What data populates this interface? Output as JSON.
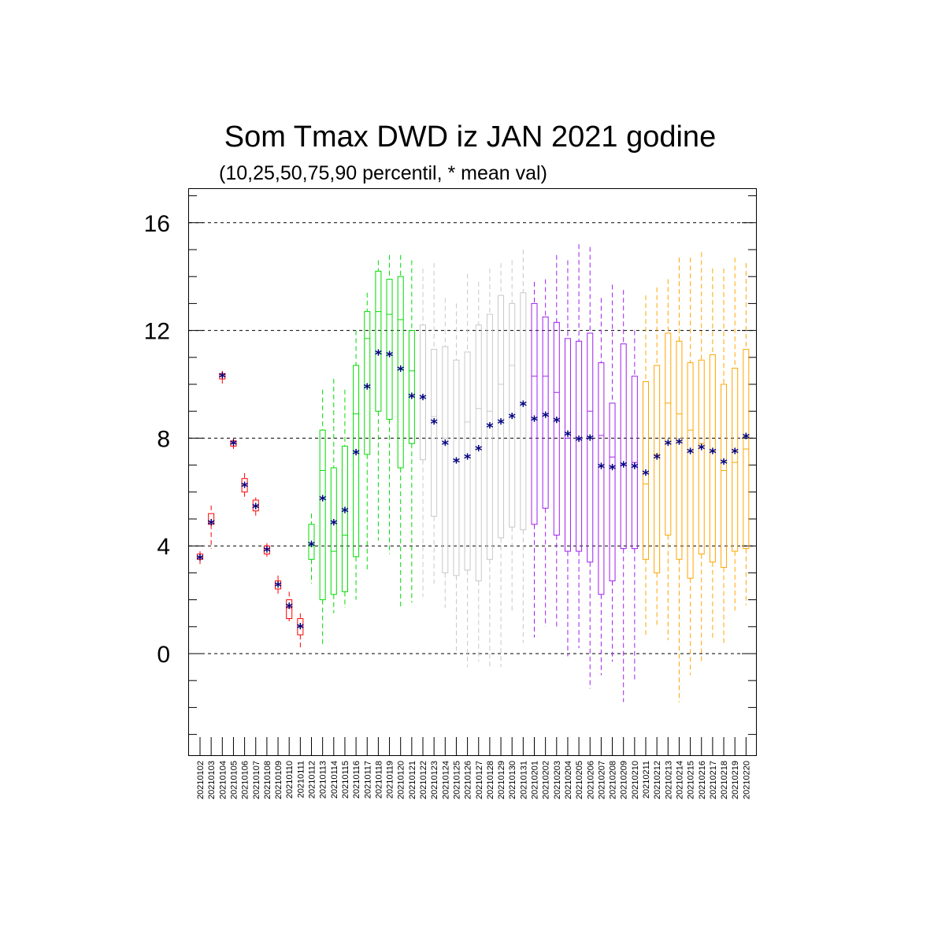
{
  "chart_data": {
    "type": "box",
    "title": "Som Tmax DWD iz JAN 2021 godine",
    "subtitle": "(10,25,50,75,90 percentil, * mean val)",
    "xlabel": "",
    "ylabel": "",
    "ylim": [
      -3.0,
      17.0
    ],
    "yticks": [
      0,
      4,
      8,
      12,
      16
    ],
    "grid": "horizontal dashed at major ticks",
    "colors": {
      "red": "#ff0000",
      "green": "#00dd00",
      "gray": "#c8c8c8",
      "purple": "#a020f0",
      "orange": "#ffa500",
      "mean": "#000080"
    },
    "categories": [
      "20210102",
      "20210103",
      "20210104",
      "20210105",
      "20210106",
      "20210107",
      "20210108",
      "20210109",
      "20210110",
      "20210111",
      "20210112",
      "20210113",
      "20210114",
      "20210115",
      "20210116",
      "20210117",
      "20210118",
      "20210119",
      "20210120",
      "20210121",
      "20210122",
      "20210123",
      "20210124",
      "20210125",
      "20210126",
      "20210127",
      "20210128",
      "20210129",
      "20210130",
      "20210131",
      "20210201",
      "20210202",
      "20210203",
      "20210204",
      "20210205",
      "20210206",
      "20210207",
      "20210208",
      "20210209",
      "20210210",
      "20210211",
      "20210212",
      "20210213",
      "20210214",
      "20210215",
      "20210216",
      "20210217",
      "20210218",
      "20210219",
      "20210220"
    ],
    "boxes": [
      {
        "color": "red",
        "p10": 3.3,
        "p25": 3.5,
        "p50": 3.6,
        "p75": 3.7,
        "p90": 3.8,
        "mean": 3.55
      },
      {
        "color": "red",
        "p10": 3.9,
        "p25": 4.8,
        "p50": 4.9,
        "p75": 5.2,
        "p90": 5.5,
        "mean": 4.85
      },
      {
        "color": "red",
        "p10": 10.0,
        "p25": 10.2,
        "p50": 10.3,
        "p75": 10.4,
        "p90": 10.5,
        "mean": 10.3
      },
      {
        "color": "red",
        "p10": 7.6,
        "p25": 7.7,
        "p50": 7.8,
        "p75": 7.9,
        "p90": 8.0,
        "mean": 7.8
      },
      {
        "color": "red",
        "p10": 5.7,
        "p25": 6.0,
        "p50": 6.3,
        "p75": 6.5,
        "p90": 6.7,
        "mean": 6.25
      },
      {
        "color": "red",
        "p10": 5.1,
        "p25": 5.3,
        "p50": 5.5,
        "p75": 5.7,
        "p90": 5.8,
        "mean": 5.45
      },
      {
        "color": "red",
        "p10": 3.6,
        "p25": 3.7,
        "p50": 3.9,
        "p75": 4.0,
        "p90": 4.1,
        "mean": 3.85
      },
      {
        "color": "red",
        "p10": 2.2,
        "p25": 2.4,
        "p50": 2.6,
        "p75": 2.7,
        "p90": 2.9,
        "mean": 2.55
      },
      {
        "color": "red",
        "p10": 1.2,
        "p25": 1.3,
        "p50": 1.7,
        "p75": 2.0,
        "p90": 2.3,
        "mean": 1.75
      },
      {
        "color": "red",
        "p10": 0.2,
        "p25": 0.7,
        "p50": 1.0,
        "p75": 1.3,
        "p90": 1.5,
        "mean": 1.0
      },
      {
        "color": "green",
        "p10": 2.6,
        "p25": 3.5,
        "p50": 4.0,
        "p75": 4.8,
        "p90": 5.2,
        "mean": 4.05
      },
      {
        "color": "green",
        "p10": 0.3,
        "p25": 2.0,
        "p50": 6.8,
        "p75": 8.3,
        "p90": 9.8,
        "mean": 5.75
      },
      {
        "color": "green",
        "p10": 1.5,
        "p25": 2.2,
        "p50": 3.8,
        "p75": 6.9,
        "p90": 10.2,
        "mean": 4.85
      },
      {
        "color": "green",
        "p10": 1.7,
        "p25": 2.3,
        "p50": 4.4,
        "p75": 7.7,
        "p90": 9.8,
        "mean": 5.3
      },
      {
        "color": "green",
        "p10": 2.0,
        "p25": 3.6,
        "p50": 8.9,
        "p75": 10.7,
        "p90": 12.0,
        "mean": 7.45
      },
      {
        "color": "green",
        "p10": 3.1,
        "p25": 7.4,
        "p50": 11.7,
        "p75": 12.7,
        "p90": 13.4,
        "mean": 9.9
      },
      {
        "color": "green",
        "p10": 4.2,
        "p25": 9.0,
        "p50": 12.7,
        "p75": 14.2,
        "p90": 14.6,
        "mean": 11.15
      },
      {
        "color": "green",
        "p10": 3.7,
        "p25": 8.7,
        "p50": 12.6,
        "p75": 13.9,
        "p90": 14.8,
        "mean": 11.1
      },
      {
        "color": "green",
        "p10": 1.7,
        "p25": 6.9,
        "p50": 12.4,
        "p75": 14.0,
        "p90": 14.8,
        "mean": 10.55
      },
      {
        "color": "green",
        "p10": 1.9,
        "p25": 7.8,
        "p50": 10.5,
        "p75": 12.0,
        "p90": 14.6,
        "mean": 9.55
      },
      {
        "color": "gray",
        "p10": 2.1,
        "p25": 7.2,
        "p50": 9.5,
        "p75": 12.2,
        "p90": 14.3,
        "mean": 9.5
      },
      {
        "color": "gray",
        "p10": 2.6,
        "p25": 5.1,
        "p50": 8.8,
        "p75": 11.3,
        "p90": 14.5,
        "mean": 8.6
      },
      {
        "color": "gray",
        "p10": 1.7,
        "p25": 3.0,
        "p50": 8.0,
        "p75": 11.4,
        "p90": 13.2,
        "mean": 7.8
      },
      {
        "color": "gray",
        "p10": 0.1,
        "p25": 2.9,
        "p50": 7.2,
        "p75": 10.9,
        "p90": 13.0,
        "mean": 7.15
      },
      {
        "color": "gray",
        "p10": -0.5,
        "p25": 3.1,
        "p50": 8.6,
        "p75": 11.2,
        "p90": 14.1,
        "mean": 7.3
      },
      {
        "color": "gray",
        "p10": -0.3,
        "p25": 2.7,
        "p50": 9.1,
        "p75": 12.2,
        "p90": 13.8,
        "mean": 7.6
      },
      {
        "color": "gray",
        "p10": -0.6,
        "p25": 3.5,
        "p50": 9.0,
        "p75": 12.6,
        "p90": 14.3,
        "mean": 8.45
      },
      {
        "color": "gray",
        "p10": -0.5,
        "p25": 4.3,
        "p50": 10.0,
        "p75": 13.3,
        "p90": 14.5,
        "mean": 8.6
      },
      {
        "color": "gray",
        "p10": 1.6,
        "p25": 4.7,
        "p50": 10.7,
        "p75": 13.0,
        "p90": 14.6,
        "mean": 8.8
      },
      {
        "color": "gray",
        "p10": 0.4,
        "p25": 4.6,
        "p50": 9.3,
        "p75": 13.4,
        "p90": 15.0,
        "mean": 9.25
      },
      {
        "color": "purple",
        "p10": 0.6,
        "p25": 4.8,
        "p50": 10.3,
        "p75": 13.0,
        "p90": 13.8,
        "mean": 8.7
      },
      {
        "color": "purple",
        "p10": 1.0,
        "p25": 5.4,
        "p50": 10.3,
        "p75": 12.5,
        "p90": 13.9,
        "mean": 8.85
      },
      {
        "color": "purple",
        "p10": 0.9,
        "p25": 4.4,
        "p50": 9.7,
        "p75": 12.3,
        "p90": 14.8,
        "mean": 8.65
      },
      {
        "color": "purple",
        "p10": -0.1,
        "p25": 3.8,
        "p50": 8.0,
        "p75": 11.7,
        "p90": 14.6,
        "mean": 8.15
      },
      {
        "color": "purple",
        "p10": 0.2,
        "p25": 3.8,
        "p50": 8.0,
        "p75": 11.6,
        "p90": 15.2,
        "mean": 7.95
      },
      {
        "color": "purple",
        "p10": -1.3,
        "p25": 3.4,
        "p50": 9.0,
        "p75": 11.9,
        "p90": 15.1,
        "mean": 8.0
      },
      {
        "color": "purple",
        "p10": -0.8,
        "p25": 2.2,
        "p50": 8.1,
        "p75": 10.8,
        "p90": 13.2,
        "mean": 6.95
      },
      {
        "color": "purple",
        "p10": -0.3,
        "p25": 2.7,
        "p50": 7.3,
        "p75": 9.3,
        "p90": 13.7,
        "mean": 6.9
      },
      {
        "color": "purple",
        "p10": -1.8,
        "p25": 3.9,
        "p50": 7.0,
        "p75": 11.5,
        "p90": 13.5,
        "mean": 7.0
      },
      {
        "color": "purple",
        "p10": -1.0,
        "p25": 3.9,
        "p50": 7.1,
        "p75": 10.3,
        "p90": 12.0,
        "mean": 6.95
      },
      {
        "color": "orange",
        "p10": 0.7,
        "p25": 3.5,
        "p50": 6.3,
        "p75": 10.1,
        "p90": 13.3,
        "mean": 6.7
      },
      {
        "color": "orange",
        "p10": 1.0,
        "p25": 3.0,
        "p50": 7.4,
        "p75": 10.7,
        "p90": 13.6,
        "mean": 7.3
      },
      {
        "color": "orange",
        "p10": 0.5,
        "p25": 4.4,
        "p50": 9.3,
        "p75": 11.9,
        "p90": 13.9,
        "mean": 7.8
      },
      {
        "color": "orange",
        "p10": -1.8,
        "p25": 3.5,
        "p50": 8.9,
        "p75": 11.6,
        "p90": 14.7,
        "mean": 7.85
      },
      {
        "color": "orange",
        "p10": -0.8,
        "p25": 2.8,
        "p50": 8.3,
        "p75": 10.8,
        "p90": 14.7,
        "mean": 7.5
      },
      {
        "color": "orange",
        "p10": -0.4,
        "p25": 3.7,
        "p50": 7.8,
        "p75": 10.9,
        "p90": 14.9,
        "mean": 7.65
      },
      {
        "color": "orange",
        "p10": 0.5,
        "p25": 3.4,
        "p50": 7.5,
        "p75": 11.1,
        "p90": 14.3,
        "mean": 7.5
      },
      {
        "color": "orange",
        "p10": 0.4,
        "p25": 3.2,
        "p50": 6.8,
        "p75": 10.0,
        "p90": 14.3,
        "mean": 7.1
      },
      {
        "color": "orange",
        "p10": 1.6,
        "p25": 3.8,
        "p50": 7.1,
        "p75": 10.6,
        "p90": 14.7,
        "mean": 7.5
      },
      {
        "color": "orange",
        "p10": 1.8,
        "p25": 3.9,
        "p50": 7.6,
        "p75": 11.3,
        "p90": 14.5,
        "mean": 8.05
      }
    ]
  }
}
